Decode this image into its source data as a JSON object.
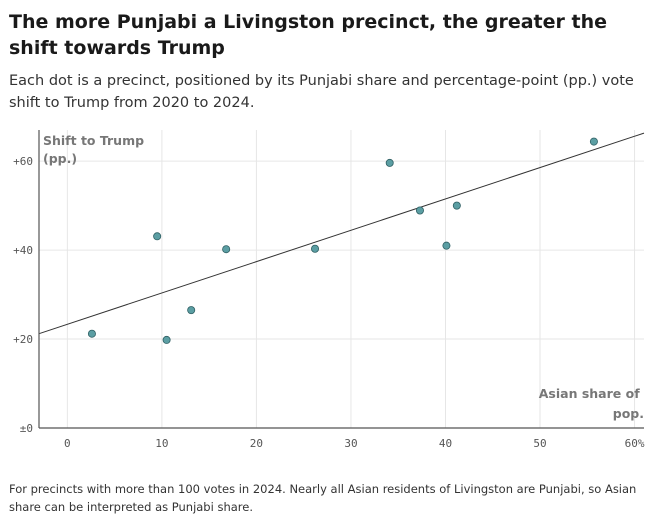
{
  "title": "The more Punjabi a Livingston precinct, the greater the shift towards Trump",
  "subtitle": "Each dot is a precinct, positioned by its Punjabi share and percentage-point (pp.) vote shift to Trump from 2020 to 2024.",
  "note": "For precincts with more than 100 votes in 2024. Nearly all Asian residents of Livingston are Punjabi, so Asian share can be interpreted as Punjabi share.",
  "colors": {
    "dot": "#5b9ea3",
    "dot_stroke": "#2f5f63",
    "trend": "#333333",
    "grid": "#e6e6e6",
    "axis": "#555555"
  },
  "chart_data": {
    "type": "scatter",
    "ylabel_lines": [
      "Shift to Trump",
      "(pp.)"
    ],
    "xlabel_lines": [
      "Asian share of",
      "pop."
    ],
    "xlim": [
      -3,
      61
    ],
    "ylim": [
      0,
      67
    ],
    "x_ticks": [
      {
        "value": 0,
        "label": "0"
      },
      {
        "value": 10,
        "label": "10"
      },
      {
        "value": 20,
        "label": "20"
      },
      {
        "value": 30,
        "label": "30"
      },
      {
        "value": 40,
        "label": "40"
      },
      {
        "value": 50,
        "label": "50"
      },
      {
        "value": 60,
        "label": "60%"
      }
    ],
    "y_ticks": [
      {
        "value": 0,
        "label": "±0"
      },
      {
        "value": 20,
        "label": "+20"
      },
      {
        "value": 40,
        "label": "+40"
      },
      {
        "value": 60,
        "label": "+60"
      }
    ],
    "points": [
      {
        "x": 2.6,
        "y": 21.2
      },
      {
        "x": 9.5,
        "y": 43.1
      },
      {
        "x": 10.5,
        "y": 19.8
      },
      {
        "x": 13.1,
        "y": 26.5
      },
      {
        "x": 16.8,
        "y": 40.2
      },
      {
        "x": 26.2,
        "y": 40.3
      },
      {
        "x": 34.1,
        "y": 59.6
      },
      {
        "x": 37.3,
        "y": 48.9
      },
      {
        "x": 40.1,
        "y": 41.0
      },
      {
        "x": 41.2,
        "y": 50.0
      },
      {
        "x": 55.7,
        "y": 64.4
      }
    ],
    "trendline": [
      {
        "x": -3,
        "y": 21.2
      },
      {
        "x": 61,
        "y": 66.3
      }
    ]
  }
}
